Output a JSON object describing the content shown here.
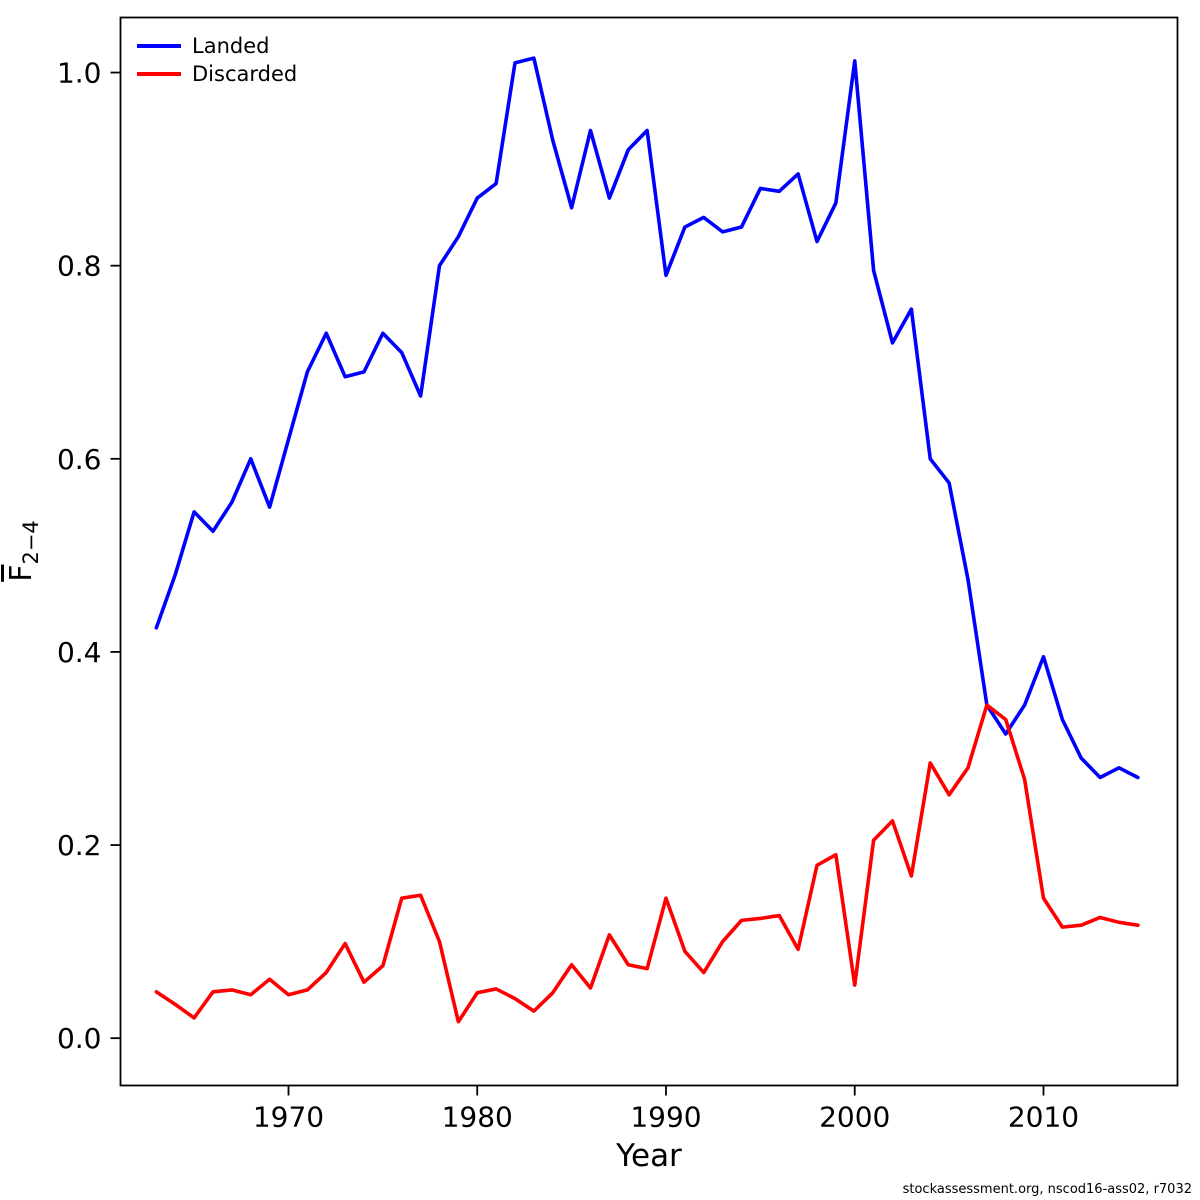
{
  "footer": {
    "credit": "stockassessment.org, nscod16-ass02, r7032"
  },
  "chart_data": {
    "type": "line",
    "title": "",
    "xlabel": "Year",
    "ylabel": "F (mean, ages 2-4)",
    "ylabel_main": "F",
    "ylabel_sub": "2−4",
    "xlim": [
      1961.1,
      2017.1
    ],
    "ylim": [
      -0.049,
      1.057
    ],
    "x_ticks": [
      1970,
      1980,
      1990,
      2000,
      2010
    ],
    "y_ticks": [
      0.0,
      0.2,
      0.4,
      0.6,
      0.8,
      1.0
    ],
    "grid": false,
    "legend_position": "top-left",
    "x": [
      1963,
      1964,
      1965,
      1966,
      1967,
      1968,
      1969,
      1970,
      1971,
      1972,
      1973,
      1974,
      1975,
      1976,
      1977,
      1978,
      1979,
      1980,
      1981,
      1982,
      1983,
      1984,
      1985,
      1986,
      1987,
      1988,
      1989,
      1990,
      1991,
      1992,
      1993,
      1994,
      1995,
      1996,
      1997,
      1998,
      1999,
      2000,
      2001,
      2002,
      2003,
      2004,
      2005,
      2006,
      2007,
      2008,
      2009,
      2010,
      2011,
      2012,
      2013,
      2014,
      2015
    ],
    "series": [
      {
        "name": "Landed",
        "color": "#0000ff",
        "values": [
          0.425,
          0.48,
          0.545,
          0.525,
          0.555,
          0.6,
          0.55,
          0.62,
          0.69,
          0.73,
          0.685,
          0.69,
          0.73,
          0.71,
          0.665,
          0.8,
          0.83,
          0.87,
          0.885,
          1.01,
          1.015,
          0.93,
          0.86,
          0.94,
          0.87,
          0.92,
          0.94,
          0.79,
          0.84,
          0.85,
          0.835,
          0.84,
          0.88,
          0.877,
          0.895,
          0.825,
          0.865,
          1.012,
          0.795,
          0.72,
          0.755,
          0.6,
          0.575,
          0.475,
          0.345,
          0.315,
          0.345,
          0.395,
          0.33,
          0.29,
          0.27,
          0.28,
          0.27
        ]
      },
      {
        "name": "Discarded",
        "color": "#ff0000",
        "values": [
          0.048,
          0.035,
          0.021,
          0.048,
          0.05,
          0.045,
          0.061,
          0.045,
          0.05,
          0.068,
          0.098,
          0.058,
          0.075,
          0.145,
          0.148,
          0.1,
          0.017,
          0.047,
          0.051,
          0.041,
          0.028,
          0.047,
          0.076,
          0.052,
          0.107,
          0.076,
          0.072,
          0.145,
          0.09,
          0.068,
          0.1,
          0.122,
          0.124,
          0.127,
          0.092,
          0.179,
          0.19,
          0.055,
          0.205,
          0.225,
          0.168,
          0.285,
          0.252,
          0.28,
          0.345,
          0.33,
          0.268,
          0.145,
          0.115,
          0.117,
          0.125,
          0.12,
          0.117
        ]
      }
    ]
  }
}
